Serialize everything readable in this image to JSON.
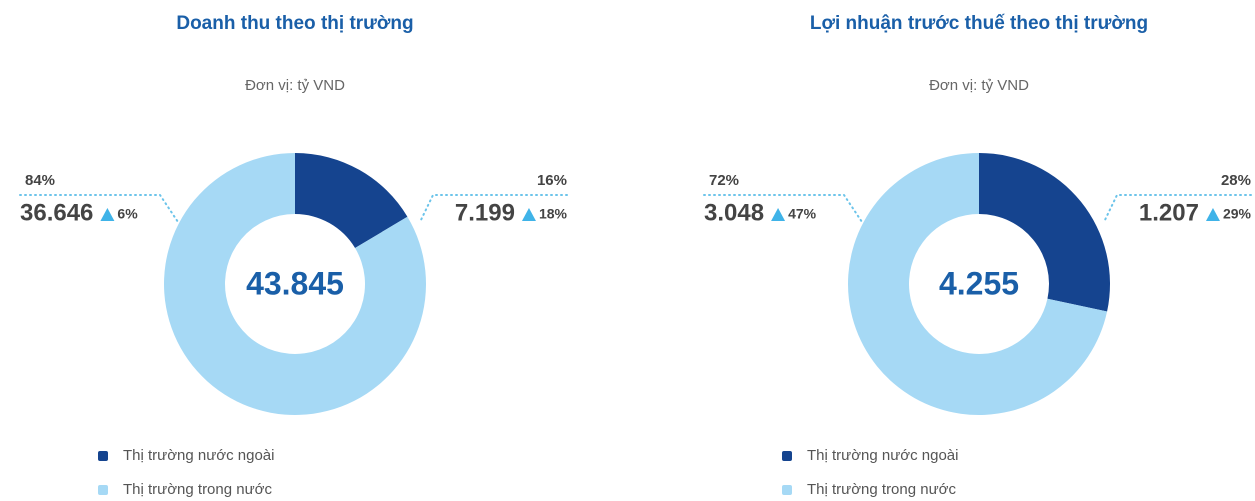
{
  "chart_data": [
    {
      "type": "donut",
      "title": "Doanh thu theo thị trường",
      "subtitle": "Đơn vị: tỷ VND",
      "categories": [
        "Thị trường nước ngoài",
        "Thị trường trong nước"
      ],
      "values": [
        7199,
        36646
      ],
      "value_labels": [
        "7.199",
        "36.646"
      ],
      "percents": [
        16,
        84
      ],
      "percent_labels": [
        "16%",
        "84%"
      ],
      "growth": [
        18,
        6
      ],
      "growth_labels": [
        "18%",
        "6%"
      ],
      "total": 43845,
      "total_label": "43.845",
      "colors": [
        "#15448f",
        "#a6d9f5"
      ]
    },
    {
      "type": "donut",
      "title": "Lợi nhuận trước thuế theo thị trường",
      "subtitle": "Đơn vị: tỷ VND",
      "categories": [
        "Thị trường nước ngoài",
        "Thị trường trong nước"
      ],
      "values": [
        1207,
        3048
      ],
      "value_labels": [
        "1.207",
        "3.048"
      ],
      "percents": [
        28,
        72
      ],
      "percent_labels": [
        "28%",
        "72%"
      ],
      "growth": [
        29,
        47
      ],
      "growth_labels": [
        "29%",
        "47%"
      ],
      "total": 4255,
      "total_label": "4.255",
      "colors": [
        "#15448f",
        "#a6d9f5"
      ]
    }
  ]
}
